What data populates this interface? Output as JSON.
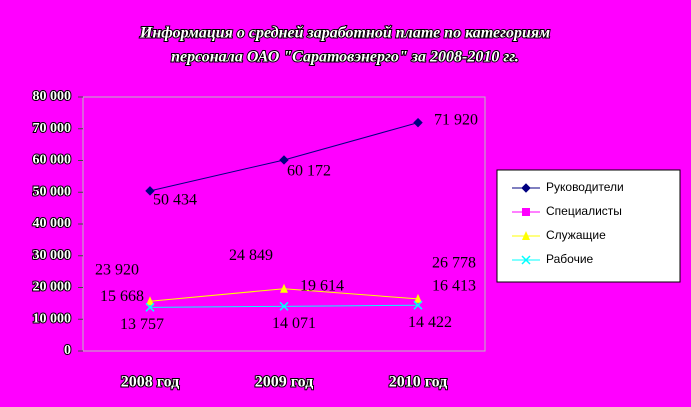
{
  "chart_data": {
    "type": "line",
    "title": [
      "Информация о средней заработной плате по категориям",
      "персонала ОАО \"Саратовэнерго\" за 2008-2010 гг."
    ],
    "categories": [
      "2008 год",
      "2009 год",
      "2010 год"
    ],
    "ylim": [
      0,
      80000
    ],
    "yticks": [
      0,
      {
        "value": 10000,
        "label": "10 000"
      },
      {
        "value": 20000,
        "label": "20 000"
      },
      {
        "value": 30000,
        "label": "30 000"
      },
      {
        "value": 40000,
        "label": "40 000"
      },
      {
        "value": 50000,
        "label": "50 000"
      },
      {
        "value": 60000,
        "label": "60 000"
      },
      {
        "value": 70000,
        "label": "70 000"
      },
      {
        "value": 80000,
        "label": "80 000"
      }
    ],
    "legend": "right",
    "series": [
      {
        "name": "Руководители",
        "color": "#000080",
        "marker": "diamond",
        "values": [
          50434,
          60172,
          71920
        ],
        "value_labels": [
          "50 434",
          "60 172",
          "71 920"
        ]
      },
      {
        "name": "Специалисты",
        "color": "#ff00ff",
        "marker": "square",
        "values": [
          23920,
          24849,
          26778
        ],
        "value_labels": [
          "23 920",
          "24 849",
          "26 778"
        ]
      },
      {
        "name": "Служащие",
        "color": "#ffff00",
        "marker": "triangle",
        "values": [
          15668,
          19614,
          16413
        ],
        "value_labels": [
          "15 668",
          "19 614",
          "16 413"
        ]
      },
      {
        "name": "Рабочие",
        "color": "#00ffff",
        "marker": "cross",
        "values": [
          13757,
          14071,
          14422
        ],
        "value_labels": [
          "13 757",
          "14 071",
          "14 422"
        ]
      }
    ]
  }
}
